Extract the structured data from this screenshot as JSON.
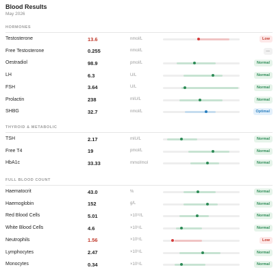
{
  "header": {
    "title": "Blood Results",
    "subtitle": "May 2026"
  },
  "sections": [
    {
      "title": "HORMONES",
      "rows": [
        [
          "Testosterone",
          "13.6",
          "nmol/L",
          "Low"
        ],
        [
          "Free Testosterone",
          "0.255",
          "nmol/L",
          "—"
        ],
        [
          "Oestradiol",
          "98.9",
          "pmol/L",
          "Normal"
        ],
        [
          "LH",
          "6.3",
          "U/L",
          "Normal"
        ],
        [
          "FSH",
          "3.64",
          "U/L",
          "Normal"
        ],
        [
          "Prolactin",
          "238",
          "mIU/L",
          "Normal"
        ],
        [
          "SHBG",
          "32.7",
          "nmol/L",
          "Optimal"
        ]
      ]
    },
    {
      "title": "THYROID & METABOLIC",
      "rows": [
        [
          "TSH",
          "2.17",
          "mIU/L",
          "Normal"
        ],
        [
          "Free T4",
          "19",
          "pmol/L",
          "Normal"
        ],
        [
          "HbA1c",
          "33.33",
          "mmol/mol",
          "Normal"
        ]
      ]
    },
    {
      "title": "FULL BLOOD COUNT",
      "rows": [
        [
          "Haematocrit",
          "43.0",
          "%",
          "Normal"
        ],
        [
          "Haemoglobin",
          "152",
          "g/L",
          "Normal"
        ],
        [
          "Red Blood Cells",
          "5.01",
          "×10¹²/L",
          "Normal"
        ],
        [
          "White Blood Cells",
          "4.6",
          "×10⁹/L",
          "Normal"
        ],
        [
          "Neutrophils",
          "1.56",
          "×10⁹/L",
          "Low"
        ],
        [
          "Lymphocytes",
          "2.47",
          "×10⁹/L",
          "Normal"
        ],
        [
          "Monocytes",
          "0.34",
          "×10⁹/L",
          "Normal"
        ]
      ]
    }
  ]
}
